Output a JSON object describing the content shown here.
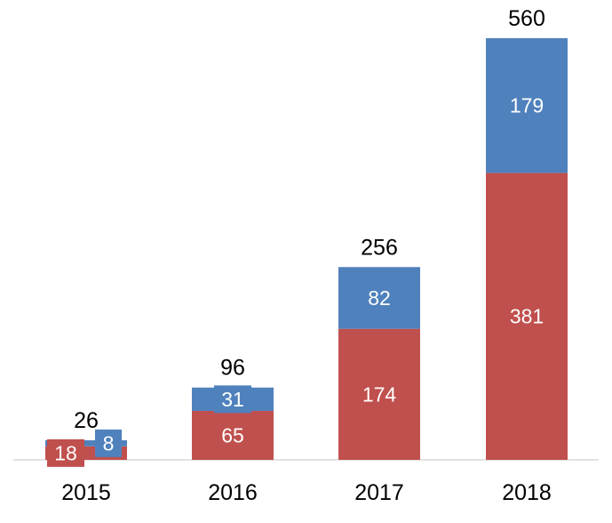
{
  "chart_data": {
    "type": "bar",
    "stacked": true,
    "categories": [
      "2015",
      "2016",
      "2017",
      "2018"
    ],
    "series": [
      {
        "values": [
          18,
          65,
          174,
          381
        ],
        "color": "#c0504d"
      },
      {
        "values": [
          8,
          31,
          82,
          179
        ],
        "color": "#4f81bd"
      }
    ],
    "totals": [
      26,
      96,
      256,
      560
    ],
    "title": "",
    "xlabel": "",
    "ylabel": "",
    "ylim": [
      0,
      600
    ],
    "grid": false,
    "legend": "none"
  }
}
